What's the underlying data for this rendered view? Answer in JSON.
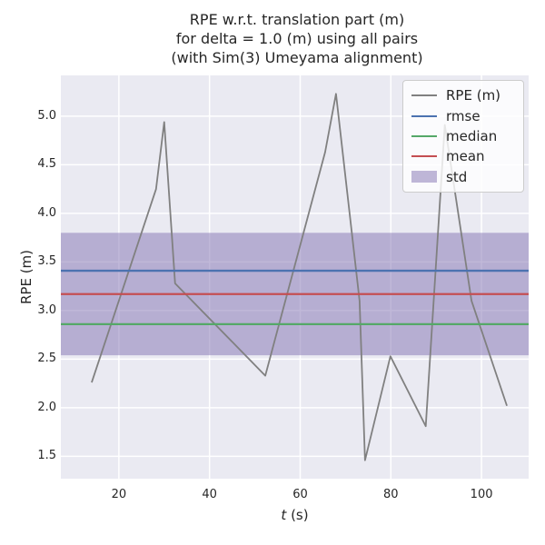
{
  "colors": {
    "figure_background": "#FFFFFF",
    "axes_background": "#EAEAF2",
    "grid": "#FFFFFF",
    "text": "#262626",
    "rpe_line": "#808080",
    "rmse": "#4C72B0",
    "median": "#55A868",
    "mean": "#C44E52",
    "std_band": "#8172B2",
    "legend_border": "#CCCCCC"
  },
  "chart_data": {
    "type": "line",
    "title_lines": [
      "RPE w.r.t. translation part (m)",
      "for delta = 1.0 (m) using all pairs",
      "(with Sim(3) Umeyama alignment)"
    ],
    "xlabel_parts": [
      "t",
      " (s)"
    ],
    "ylabel": "RPE (m)",
    "xlim": [
      7.2,
      110.4
    ],
    "ylim": [
      1.27,
      5.42
    ],
    "xticks": [
      20,
      40,
      60,
      80,
      100
    ],
    "yticks": [
      1.5,
      2.0,
      2.5,
      3.0,
      3.5,
      4.0,
      4.5,
      5.0
    ],
    "grid": true,
    "legend_position": "upper right",
    "series": [
      {
        "name": "RPE (m)",
        "color": "#808080",
        "x": [
          14.0,
          28.2,
          30.0,
          32.4,
          52.3,
          65.5,
          67.9,
          73.1,
          74.3,
          79.9,
          87.7,
          91.9,
          97.8,
          105.6
        ],
        "y": [
          2.26,
          4.25,
          4.94,
          3.28,
          2.33,
          4.63,
          5.23,
          3.1,
          1.46,
          2.53,
          1.81,
          4.91,
          3.1,
          2.02
        ]
      }
    ],
    "stat_lines": [
      {
        "name": "rmse",
        "value": 3.41,
        "color": "#4C72B0"
      },
      {
        "name": "median",
        "value": 2.86,
        "color": "#55A868"
      },
      {
        "name": "mean",
        "value": 3.17,
        "color": "#C44E52"
      }
    ],
    "std_band": {
      "name": "std",
      "lower": 2.54,
      "upper": 3.8,
      "mean": 3.17,
      "std": 0.63,
      "color": "#8172B2",
      "alpha": 0.5
    },
    "legend": {
      "items": [
        {
          "label": "RPE (m)",
          "type": "line",
          "color": "#808080"
        },
        {
          "label": "rmse",
          "type": "line",
          "color": "#4C72B0"
        },
        {
          "label": "median",
          "type": "line",
          "color": "#55A868"
        },
        {
          "label": "mean",
          "type": "line",
          "color": "#C44E52"
        },
        {
          "label": "std",
          "type": "patch",
          "color": "#8172B2",
          "alpha": 0.5
        }
      ]
    }
  }
}
